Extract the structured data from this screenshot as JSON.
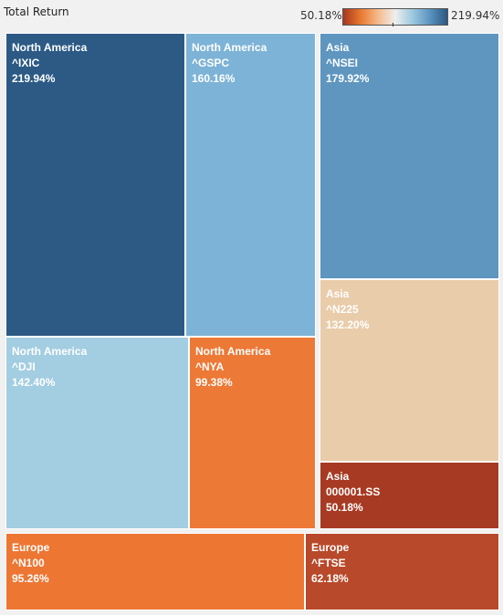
{
  "header": {
    "title": "Total Return",
    "legend_min": "50.18%",
    "legend_max": "219.94%",
    "legend_gradient": [
      "#a8361f",
      "#e8782f",
      "#f6b98a",
      "#eeeeee",
      "#9cc8de",
      "#5b93c0",
      "#2a5882"
    ]
  },
  "chart_data": {
    "type": "treemap",
    "title": "Total Return",
    "color_range": [
      50.18,
      219.94
    ],
    "tiles": [
      {
        "region": "North America",
        "ticker": "^IXIC",
        "value": 219.94,
        "label": "219.94%",
        "color": "#2c5a85"
      },
      {
        "region": "North America",
        "ticker": "^GSPC",
        "value": 160.16,
        "label": "160.16%",
        "color": "#7db3d6"
      },
      {
        "region": "Asia",
        "ticker": "^NSEI",
        "value": 179.92,
        "label": "179.92%",
        "color": "#5e96c0"
      },
      {
        "region": "Asia",
        "ticker": "^N225",
        "value": 132.2,
        "label": "132.20%",
        "color": "#e9ccaa"
      },
      {
        "region": "North America",
        "ticker": "^DJI",
        "value": 142.4,
        "label": "142.40%",
        "color": "#a3cde1"
      },
      {
        "region": "North America",
        "ticker": "^NYA",
        "value": 99.38,
        "label": "99.38%",
        "color": "#ed7936"
      },
      {
        "region": "Asia",
        "ticker": "000001.SS",
        "value": 50.18,
        "label": "50.18%",
        "color": "#a73a22"
      },
      {
        "region": "Europe",
        "ticker": "^N100",
        "value": 95.26,
        "label": "95.26%",
        "color": "#ed7633"
      },
      {
        "region": "Europe",
        "ticker": "^FTSE",
        "value": 62.18,
        "label": "62.18%",
        "color": "#b8492a"
      }
    ]
  }
}
